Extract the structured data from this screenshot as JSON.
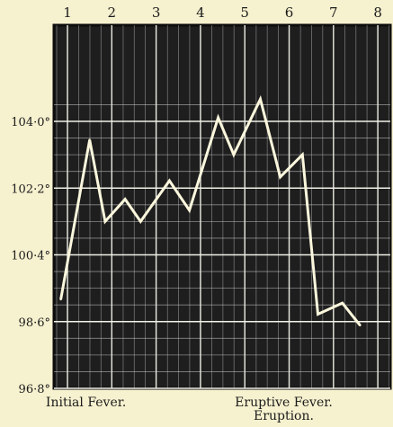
{
  "chart_data": {
    "type": "line",
    "x_ticks": [
      "1",
      "2",
      "3",
      "4",
      "5",
      "6",
      "7",
      "8"
    ],
    "y_ticks": [
      "104·0°",
      "102·2°",
      "100·4°",
      "98·6°",
      "96·8°"
    ],
    "y_tick_values": [
      104.0,
      102.2,
      100.4,
      98.6,
      96.8
    ],
    "ylim": [
      96.8,
      104.5
    ],
    "xlim": [
      0.8,
      8.3
    ],
    "grid": true,
    "series": [
      {
        "x": [
          0.85,
          1.5,
          1.85,
          2.3,
          2.65,
          3.3,
          3.75,
          4.4,
          4.75,
          5.35,
          5.8,
          6.3,
          6.65,
          7.2,
          7.6
        ],
        "y": [
          99.2,
          103.5,
          101.3,
          101.9,
          101.3,
          102.4,
          101.6,
          104.1,
          103.1,
          104.6,
          102.5,
          103.1,
          98.8,
          99.1,
          98.5
        ]
      }
    ],
    "annotations": [
      {
        "text": "Initial Fever.",
        "at_x": 1.5
      },
      {
        "text": "Eruptive Fever.",
        "at_x": 6.0
      },
      {
        "text": "Eruption.",
        "at_x": 6.0
      }
    ]
  }
}
